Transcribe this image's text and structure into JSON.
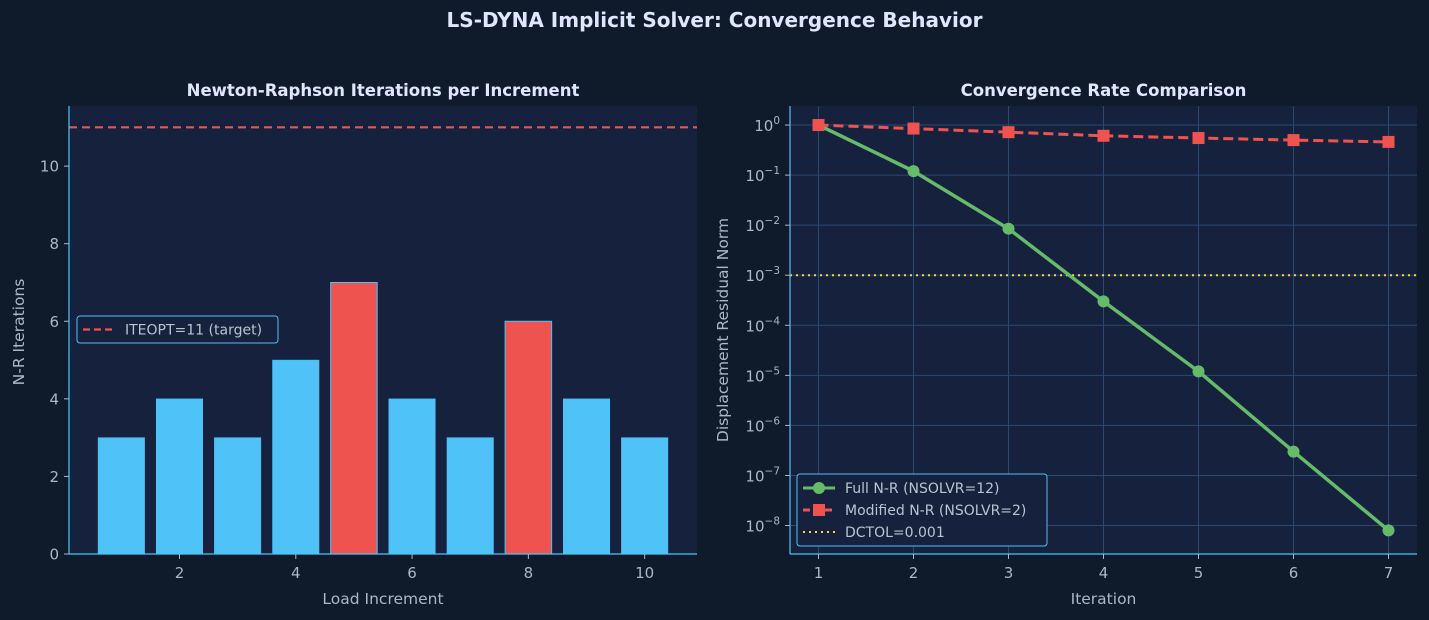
{
  "figure": {
    "title": "LS-DYNA Implicit Solver: Convergence Behavior"
  },
  "colors": {
    "background": "#0f1b2a",
    "panel": "#16213e",
    "spine": "#4fc3f7",
    "bar_normal": "#4fc3f7",
    "bar_highlight": "#ef5350",
    "full_nr": "#66bb6a",
    "modified_nr": "#ef5350",
    "tolerance": "#fdd835",
    "grid": "#2a4a72",
    "text": "#a9b7c6",
    "title": "#e0e6ff"
  },
  "chart_data": [
    {
      "type": "bar",
      "title": "Newton-Raphson Iterations per Increment",
      "xlabel": "Load Increment",
      "ylabel": "N-R Iterations",
      "categories": [
        1,
        2,
        3,
        4,
        5,
        6,
        7,
        8,
        9,
        10
      ],
      "values": [
        3,
        4,
        3,
        5,
        7,
        4,
        3,
        6,
        4,
        3
      ],
      "highlight": [
        false,
        false,
        false,
        false,
        true,
        false,
        false,
        true,
        false,
        false
      ],
      "xlim": [
        0.1,
        10.9
      ],
      "ylim": [
        0,
        11.55
      ],
      "xticks": [
        2,
        4,
        6,
        8,
        10
      ],
      "yticks": [
        0,
        2,
        4,
        6,
        8,
        10
      ],
      "reference_line": {
        "value": 11,
        "label": "ITEOPT=11 (target)",
        "style": "dashed",
        "color": "#ef5350"
      },
      "legend": {
        "position": "center-left"
      },
      "grid": false
    },
    {
      "type": "line",
      "title": "Convergence Rate Comparison",
      "xlabel": "Iteration",
      "ylabel": "Displacement Residual Norm",
      "yscale": "log",
      "x": [
        1,
        2,
        3,
        4,
        5,
        6,
        7
      ],
      "series": [
        {
          "name": "Full N-R (NSOLVR=12)",
          "values": [
            1.0,
            0.12,
            0.0085,
            0.0003,
            1.2e-05,
            3e-07,
            8e-09
          ],
          "color": "#66bb6a",
          "marker": "circle",
          "style": "solid"
        },
        {
          "name": "Modified N-R (NSOLVR=2)",
          "values": [
            1.0,
            0.85,
            0.72,
            0.61,
            0.55,
            0.5,
            0.46
          ],
          "color": "#ef5350",
          "marker": "square",
          "style": "dashed"
        }
      ],
      "reference_line": {
        "value": 0.001,
        "label": "DCTOL=0.001",
        "style": "dotted",
        "color": "#fdd835"
      },
      "xlim": [
        0.7,
        7.3
      ],
      "ylim": [
        2.7e-09,
        2.4
      ],
      "xticks": [
        1,
        2,
        3,
        4,
        5,
        6,
        7
      ],
      "ytick_base": "10",
      "ytick_exponents": [
        0,
        -1,
        -2,
        -3,
        -4,
        -5,
        -6,
        -7,
        -8
      ],
      "legend": {
        "position": "lower-left"
      },
      "grid": true
    }
  ]
}
